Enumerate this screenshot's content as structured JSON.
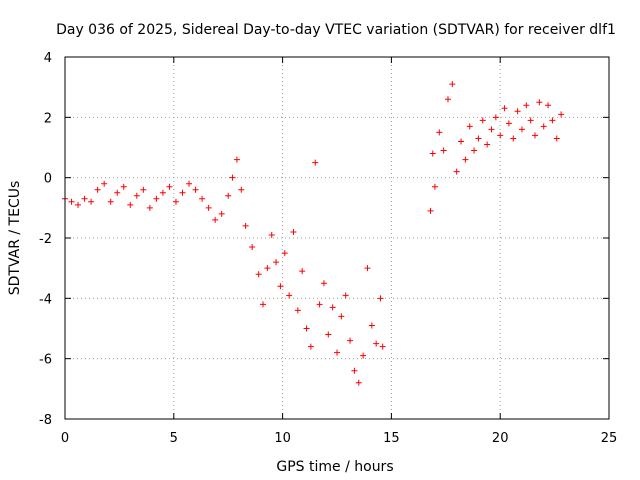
{
  "chart_data": {
    "type": "scatter",
    "title": "Day 036 of 2025, Sidereal Day-to-day VTEC variation (SDTVAR) for receiver dlf1",
    "xlabel": "GPS time / hours",
    "ylabel": "SDTVAR / TECUs",
    "xlim": [
      0,
      25
    ],
    "ylim": [
      -8,
      4
    ],
    "xticks": [
      0,
      5,
      10,
      15,
      20,
      25
    ],
    "yticks": [
      -8,
      -6,
      -4,
      -2,
      0,
      2,
      4
    ],
    "grid": true,
    "marker": "+",
    "color": "#ff0000",
    "series": [
      {
        "name": "SDTVAR",
        "points": [
          [
            0.0,
            -0.7
          ],
          [
            0.3,
            -0.8
          ],
          [
            0.6,
            -0.9
          ],
          [
            0.9,
            -0.7
          ],
          [
            1.2,
            -0.8
          ],
          [
            1.5,
            -0.4
          ],
          [
            1.8,
            -0.2
          ],
          [
            2.1,
            -0.8
          ],
          [
            2.4,
            -0.5
          ],
          [
            2.7,
            -0.3
          ],
          [
            3.0,
            -0.9
          ],
          [
            3.3,
            -0.6
          ],
          [
            3.6,
            -0.4
          ],
          [
            3.9,
            -1.0
          ],
          [
            4.2,
            -0.7
          ],
          [
            4.5,
            -0.5
          ],
          [
            4.8,
            -0.3
          ],
          [
            5.1,
            -0.8
          ],
          [
            5.4,
            -0.5
          ],
          [
            5.7,
            -0.2
          ],
          [
            6.0,
            -0.4
          ],
          [
            6.3,
            -0.7
          ],
          [
            6.6,
            -1.0
          ],
          [
            6.9,
            -1.4
          ],
          [
            7.2,
            -1.2
          ],
          [
            7.5,
            -0.6
          ],
          [
            7.7,
            0.0
          ],
          [
            7.9,
            0.6
          ],
          [
            8.1,
            -0.4
          ],
          [
            8.3,
            -1.6
          ],
          [
            8.6,
            -2.3
          ],
          [
            8.9,
            -3.2
          ],
          [
            9.1,
            -4.2
          ],
          [
            9.3,
            -3.0
          ],
          [
            9.5,
            -1.9
          ],
          [
            9.7,
            -2.8
          ],
          [
            9.9,
            -3.6
          ],
          [
            10.1,
            -2.5
          ],
          [
            10.3,
            -3.9
          ],
          [
            10.5,
            -1.8
          ],
          [
            10.7,
            -4.4
          ],
          [
            10.9,
            -3.1
          ],
          [
            11.1,
            -5.0
          ],
          [
            11.3,
            -5.6
          ],
          [
            11.5,
            0.5
          ],
          [
            11.7,
            -4.2
          ],
          [
            11.9,
            -3.5
          ],
          [
            12.1,
            -5.2
          ],
          [
            12.3,
            -4.3
          ],
          [
            12.5,
            -5.8
          ],
          [
            12.7,
            -4.6
          ],
          [
            12.9,
            -3.9
          ],
          [
            13.1,
            -5.4
          ],
          [
            13.3,
            -6.4
          ],
          [
            13.5,
            -6.8
          ],
          [
            13.7,
            -5.9
          ],
          [
            13.9,
            -3.0
          ],
          [
            14.1,
            -4.9
          ],
          [
            14.3,
            -5.5
          ],
          [
            14.5,
            -4.0
          ],
          [
            14.6,
            -5.6
          ],
          [
            16.8,
            -1.1
          ],
          [
            16.9,
            0.8
          ],
          [
            17.0,
            -0.3
          ],
          [
            17.2,
            1.5
          ],
          [
            17.4,
            0.9
          ],
          [
            17.6,
            2.6
          ],
          [
            17.8,
            3.1
          ],
          [
            18.0,
            0.2
          ],
          [
            18.2,
            1.2
          ],
          [
            18.4,
            0.6
          ],
          [
            18.6,
            1.7
          ],
          [
            18.8,
            0.9
          ],
          [
            19.0,
            1.3
          ],
          [
            19.2,
            1.9
          ],
          [
            19.4,
            1.1
          ],
          [
            19.6,
            1.6
          ],
          [
            19.8,
            2.0
          ],
          [
            20.0,
            1.4
          ],
          [
            20.2,
            2.3
          ],
          [
            20.4,
            1.8
          ],
          [
            20.6,
            1.3
          ],
          [
            20.8,
            2.2
          ],
          [
            21.0,
            1.6
          ],
          [
            21.2,
            2.4
          ],
          [
            21.4,
            1.9
          ],
          [
            21.6,
            1.4
          ],
          [
            21.8,
            2.5
          ],
          [
            22.0,
            1.7
          ],
          [
            22.2,
            2.4
          ],
          [
            22.4,
            1.9
          ],
          [
            22.6,
            1.3
          ],
          [
            22.8,
            2.1
          ]
        ]
      }
    ]
  }
}
